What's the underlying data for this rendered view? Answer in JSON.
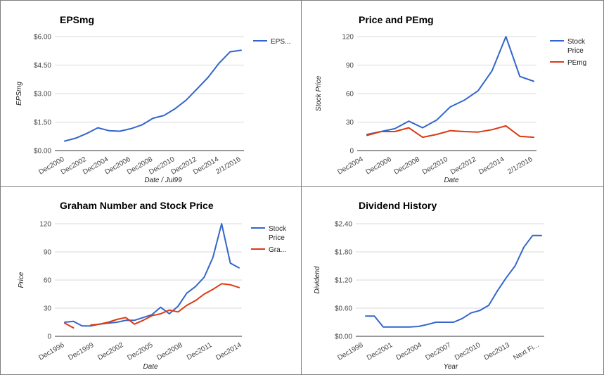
{
  "chart_data": [
    {
      "type": "line",
      "title": "EPSmg",
      "xlabel": "Date / Jul99",
      "ylabel": "EPSmg",
      "x_ticks": [
        "Dec2000",
        "Dec2002",
        "Dec2004",
        "Dec2006",
        "Dec2008",
        "Dec2010",
        "Dec2012",
        "Dec2014",
        "2/1/2016"
      ],
      "y_ticks": [
        "$0.00",
        "$1.50",
        "$3.00",
        "$4.50",
        "$6.00"
      ],
      "ylim": [
        0,
        6
      ],
      "legend_position": "right",
      "grid": true,
      "series": [
        {
          "name": "EPS...",
          "color": "#3366cc",
          "values": [
            0.5,
            0.65,
            0.9,
            1.2,
            1.05,
            1.02,
            1.15,
            1.35,
            1.7,
            1.85,
            2.2,
            2.65,
            3.25,
            3.85,
            4.6,
            5.2,
            5.28
          ]
        }
      ]
    },
    {
      "type": "line",
      "title": "Price and PEmg",
      "xlabel": "Date",
      "ylabel": "Stock Price",
      "x_ticks": [
        "Dec2004",
        "Dec2006",
        "Dec2008",
        "Dec2010",
        "Dec2012",
        "Dec2014",
        "2/1/2016"
      ],
      "y_ticks": [
        "0",
        "30",
        "60",
        "90",
        "120"
      ],
      "ylim": [
        0,
        120
      ],
      "legend_position": "right",
      "grid": true,
      "series": [
        {
          "name": "Stock Price",
          "color": "#3366cc",
          "values": [
            17,
            20,
            23,
            31,
            24,
            32,
            46,
            53,
            63,
            84,
            120,
            78,
            73
          ]
        },
        {
          "name": "PEmg",
          "color": "#dc3912",
          "values": [
            16,
            20,
            20,
            24,
            14,
            17,
            21,
            20,
            19.5,
            22,
            26,
            15,
            14
          ]
        }
      ]
    },
    {
      "type": "line",
      "title": "Graham Number and Stock Price",
      "xlabel": "Date",
      "ylabel": "Price",
      "x_ticks": [
        "Dec1996",
        "Dec1999",
        "Dec2002",
        "Dec2005",
        "Dec2008",
        "Dec2011",
        "Dec2014"
      ],
      "y_ticks": [
        "0",
        "30",
        "60",
        "90",
        "120"
      ],
      "ylim": [
        0,
        120
      ],
      "legend_position": "right",
      "grid": true,
      "series": [
        {
          "name": "Stock Price",
          "color": "#3366cc",
          "values": [
            15,
            16,
            11,
            11,
            13,
            14,
            15,
            17,
            17,
            20,
            23,
            31,
            24,
            32,
            46,
            53,
            63,
            84,
            120,
            78,
            73
          ]
        },
        {
          "name": "Gra...",
          "color": "#dc3912",
          "values": [
            14,
            9,
            null,
            12,
            13,
            15,
            18,
            20,
            13,
            17,
            22,
            24,
            28,
            26,
            33,
            38,
            45,
            50,
            56,
            55,
            52
          ]
        }
      ]
    },
    {
      "type": "line",
      "title": "Dividend History",
      "xlabel": "Year",
      "ylabel": "Dividend",
      "x_ticks": [
        "Dec1998",
        "Dec2001",
        "Dec2004",
        "Dec2007",
        "Dec2010",
        "Dec2013",
        "Next Fi..."
      ],
      "y_ticks": [
        "$0.00",
        "$0.60",
        "$1.20",
        "$1.80",
        "$2.40"
      ],
      "ylim": [
        0,
        2.4
      ],
      "grid": true,
      "series": [
        {
          "color": "#3366cc",
          "values": [
            0.43,
            0.43,
            0.2,
            0.2,
            0.2,
            0.2,
            0.21,
            0.25,
            0.3,
            0.3,
            0.3,
            0.38,
            0.5,
            0.55,
            0.66,
            0.97,
            1.25,
            1.5,
            1.9,
            2.15,
            2.15
          ]
        }
      ]
    }
  ]
}
